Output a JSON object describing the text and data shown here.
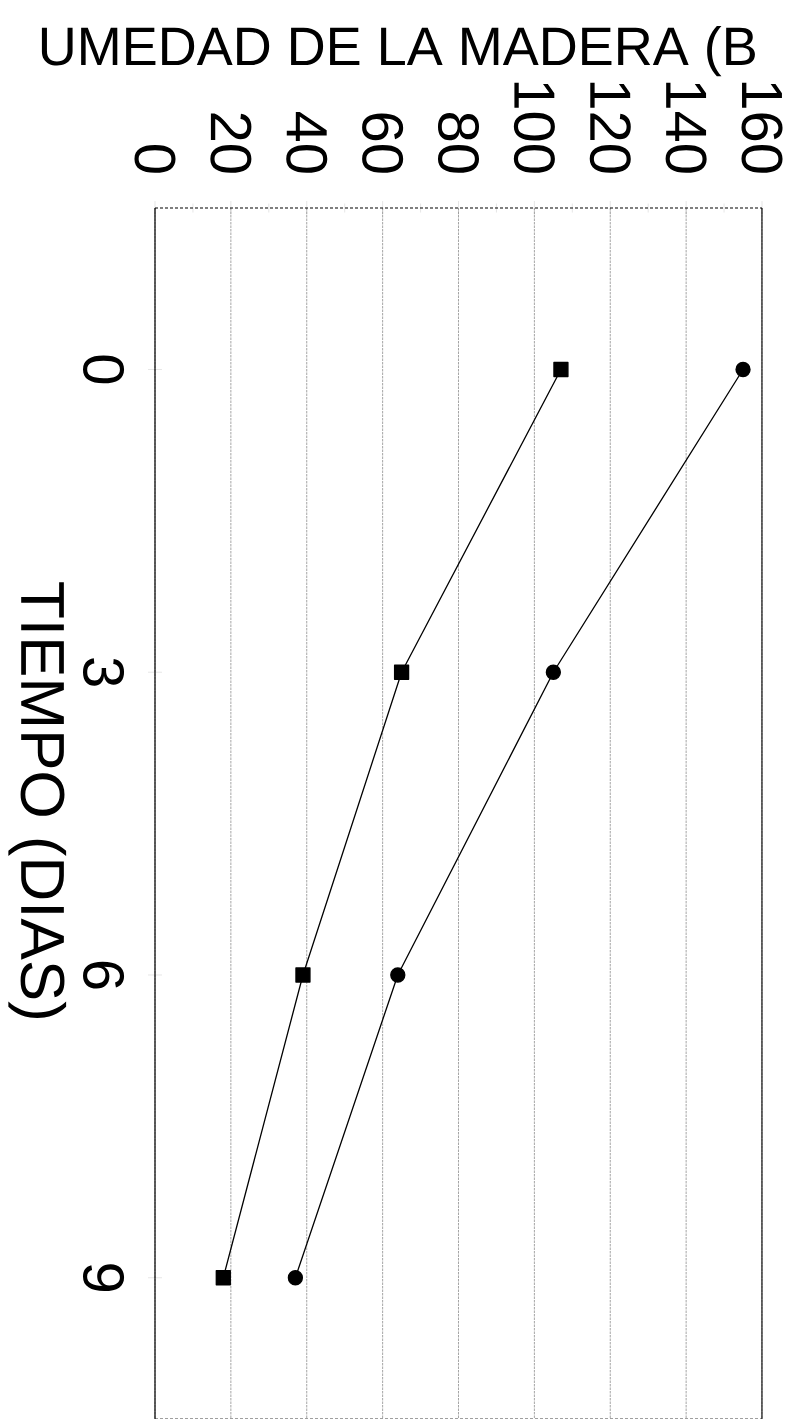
{
  "chart_data": {
    "type": "line",
    "xlabel": "UMEDAD DE LA MADERA (B",
    "ylabel": "TIEMPO (DIAS)",
    "xlim": [
      0,
      160
    ],
    "xticks": [
      0,
      20,
      40,
      60,
      80,
      100,
      120,
      140,
      160
    ],
    "ylim": [
      10.4,
      -1.6
    ],
    "yticks": [
      0,
      3,
      6,
      9
    ],
    "grid": "x",
    "line_style": "solid",
    "series": [
      {
        "color": "#000000",
        "marker": "circle",
        "x": [
          155,
          105,
          64,
          37
        ],
        "values": [
          0,
          3,
          6,
          9
        ]
      },
      {
        "color": "#000000",
        "marker": "square",
        "x": [
          107,
          65,
          39,
          18
        ],
        "values": [
          0,
          3,
          6,
          9
        ]
      }
    ]
  }
}
